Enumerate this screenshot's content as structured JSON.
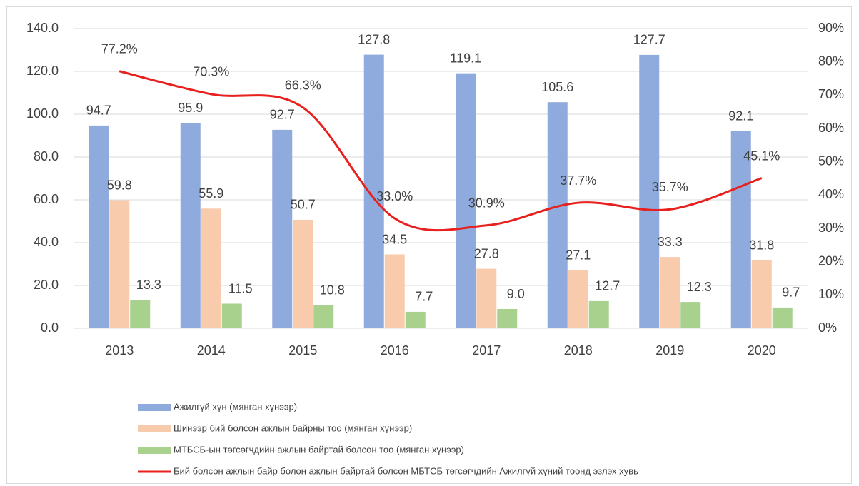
{
  "chart_data": {
    "type": "bar",
    "categories": [
      "2013",
      "2014",
      "2015",
      "2016",
      "2017",
      "2018",
      "2019",
      "2020"
    ],
    "series": [
      {
        "name": "Ажилгүй хүн (мянган хүнээр)",
        "color": "#8faadc",
        "values": [
          94.7,
          95.9,
          92.7,
          127.8,
          119.1,
          105.6,
          127.7,
          92.1
        ]
      },
      {
        "name": "Шинээр бий болсон ажлын байрны тоо (мянган хүнээр)",
        "color": "#f8cbad",
        "values": [
          59.8,
          55.9,
          50.7,
          34.5,
          27.8,
          27.1,
          33.3,
          31.8
        ]
      },
      {
        "name": "МТБСБ-ын төгсөгчдийн ажлын байртай болсон тоо (мянган хүнээр)",
        "color": "#a9d18e",
        "values": [
          13.3,
          11.5,
          10.8,
          7.7,
          9,
          12.7,
          12.3,
          9.7
        ],
        "value_labels": [
          "13.3",
          "11.5",
          "10.8",
          "7.7",
          "9.0",
          "12.7",
          "12.3",
          "9.7"
        ]
      },
      {
        "name": "Бий болсон ажлын байр болон ажлын байртай болсон МБТСБ төгсөгчдийн Ажилгүй хүний тоонд эзлэх хувь",
        "color": "#e8201e",
        "type": "line",
        "axis": "y2",
        "values": [
          77.2,
          70.3,
          66.3,
          33,
          30.9,
          37.7,
          35.7,
          45.1
        ],
        "value_labels": [
          "77.2%",
          "70.3%",
          "66.3%",
          "33.0%",
          "30.9%",
          "37.7%",
          "35.7%",
          "45.1%"
        ]
      }
    ],
    "ylim": [
      0,
      140
    ],
    "yticks": [
      {
        "value": 0,
        "label": "0.0"
      },
      {
        "value": 20,
        "label": "20.0"
      },
      {
        "value": 40,
        "label": "40.0"
      },
      {
        "value": 60,
        "label": "60.0"
      },
      {
        "value": 80,
        "label": "80.0"
      },
      {
        "value": 100,
        "label": "100.0"
      },
      {
        "value": 120,
        "label": "120.0"
      },
      {
        "value": 140,
        "label": "140.0"
      }
    ],
    "y2lim": [
      0,
      90
    ],
    "y2ticks": [
      {
        "value": 0,
        "label": "0%"
      },
      {
        "value": 10,
        "label": "10%"
      },
      {
        "value": 20,
        "label": "20%"
      },
      {
        "value": 30,
        "label": "30%"
      },
      {
        "value": 40,
        "label": "40%"
      },
      {
        "value": 50,
        "label": "50%"
      },
      {
        "value": 60,
        "label": "60%"
      },
      {
        "value": 70,
        "label": "70%"
      },
      {
        "value": 80,
        "label": "80%"
      },
      {
        "value": 90,
        "label": "90%"
      }
    ],
    "grid": true,
    "legend": "bottom"
  }
}
